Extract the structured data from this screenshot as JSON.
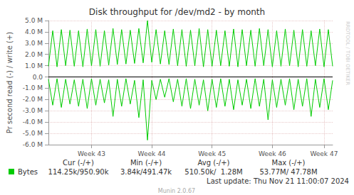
{
  "chart_data": {
    "type": "line",
    "title": "Disk throughput for /dev/md2 - by month",
    "y_label": "Pr second read (-) / write (+)",
    "watermark": "RRDTOOL / TOBI OETIKER",
    "x": [
      0,
      0.5,
      1,
      1.5,
      2,
      2.5,
      3,
      3.5,
      4,
      4.5,
      5,
      5.5,
      6,
      6.5,
      7,
      7.5,
      8,
      8.5,
      9,
      9.5,
      10,
      10.5,
      11,
      11.5,
      12,
      12.5,
      13,
      13.5,
      14,
      14.5,
      15,
      15.5,
      16,
      16.5,
      17,
      17.5,
      18,
      18.5,
      19,
      19.5,
      20,
      20.5,
      21,
      21.5,
      22,
      22.5,
      23,
      23.5,
      24,
      24.5,
      25,
      25.5,
      26,
      26.5,
      27,
      27.5,
      28,
      28.5,
      29,
      29.5,
      30,
      30.5,
      31,
      31.5,
      32,
      32.5,
      33
    ],
    "series": [
      {
        "name": "Bytes",
        "color": "#00cc00",
        "values": [
          950000,
          4100000,
          900000,
          4200000,
          1000000,
          4150000,
          950000,
          4100000,
          900000,
          4250000,
          1000000,
          4200000,
          950000,
          4100000,
          1050000,
          4300000,
          1100000,
          4200000,
          1150000,
          4150000,
          1200000,
          4300000,
          1250000,
          5000000,
          1300000,
          4200000,
          1150000,
          4100000,
          1100000,
          4250000,
          1000000,
          4200000,
          950000,
          4150000,
          1000000,
          4300000,
          900000,
          4200000,
          950000,
          4150000,
          1000000,
          4100000,
          950000,
          4250000,
          900000,
          4200000,
          1000000,
          4150000,
          950000,
          4300000,
          1000000,
          4200000,
          900000,
          4100000,
          950000,
          4250000,
          1000000,
          4150000,
          900000,
          4200000,
          950000,
          4100000,
          1000000,
          4250000,
          900000,
          4200000,
          950000
        ],
        "read_values": [
          -200000,
          -2500000,
          -150000,
          -2700000,
          -200000,
          -2400000,
          -250000,
          -2600000,
          -200000,
          -2800000,
          -150000,
          -2500000,
          -200000,
          -2300000,
          -250000,
          -3500000,
          -200000,
          -2600000,
          -150000,
          -2400000,
          -300000,
          -3600000,
          -250000,
          -5600000,
          -300000,
          -2000000,
          -200000,
          -1800000,
          -150000,
          -2200000,
          -200000,
          -2600000,
          -150000,
          -2800000,
          -200000,
          -2500000,
          -250000,
          -3000000,
          -200000,
          -2700000,
          -150000,
          -2600000,
          -200000,
          -2900000,
          -250000,
          -2500000,
          -200000,
          -2800000,
          -150000,
          -2600000,
          -200000,
          -3800000,
          -250000,
          -2700000,
          -200000,
          -2500000,
          -150000,
          -2900000,
          -200000,
          -2600000,
          -150000,
          -3500000,
          -200000,
          -2700000,
          -150000,
          -2900000,
          -300000
        ]
      }
    ],
    "xlim": [
      0,
      33
    ],
    "xticks": [
      {
        "value": 5,
        "label": "Week 43"
      },
      {
        "value": 12,
        "label": "Week 44"
      },
      {
        "value": 19,
        "label": "Week 45"
      },
      {
        "value": 26,
        "label": "Week 46"
      },
      {
        "value": 32,
        "label": "Week 47"
      }
    ],
    "ylim": [
      -6000000,
      5000000
    ],
    "yticks": [
      {
        "value": -6000000,
        "label": "-6.0 M"
      },
      {
        "value": -5000000,
        "label": "-5.0 M"
      },
      {
        "value": -4000000,
        "label": "-4.0 M"
      },
      {
        "value": -3000000,
        "label": "-3.0 M"
      },
      {
        "value": -2000000,
        "label": "-2.0 M"
      },
      {
        "value": -1000000,
        "label": "-1.0 M"
      },
      {
        "value": 0,
        "label": "0.0"
      },
      {
        "value": 1000000,
        "label": "1.0 M"
      },
      {
        "value": 2000000,
        "label": "2.0 M"
      },
      {
        "value": 3000000,
        "label": "3.0 M"
      },
      {
        "value": 4000000,
        "label": "4.0 M"
      },
      {
        "value": 5000000,
        "label": "5.0 M"
      }
    ],
    "grid": true,
    "stats": [
      {
        "label": "Cur (-/+)",
        "value": "114.25k/950.90k"
      },
      {
        "label": "Min (-/+)",
        "value": "3.84k/491.47k"
      },
      {
        "label": "Avg (-/+)",
        "value": "510.50k/  1.28M"
      },
      {
        "label": "Max (-/+)",
        "value": "53.77M/ 47.78M"
      }
    ],
    "last_update": "Last update: Thu Nov 21 11:00:07 2024",
    "footer": "Munin 2.0.67"
  }
}
